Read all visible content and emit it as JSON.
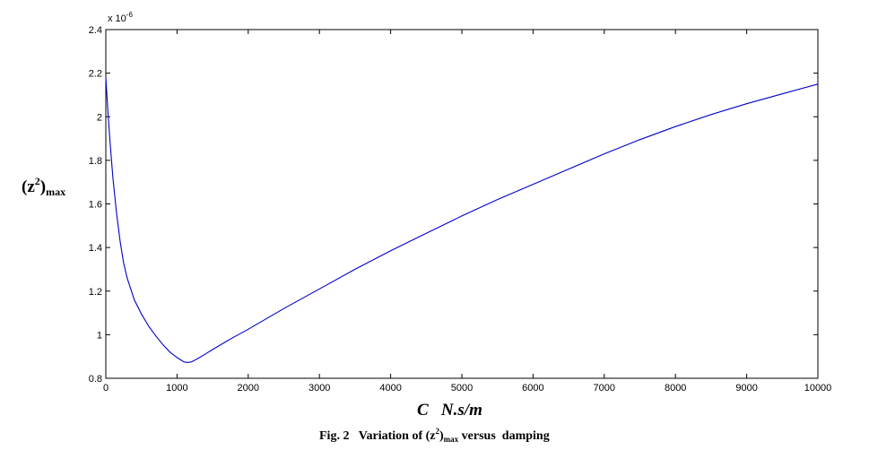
{
  "chart_data": {
    "type": "line",
    "xlabel": "C   N.s/m",
    "ylabel": {
      "base": "(z",
      "sup": "2",
      "tail": ")",
      "sub": "max"
    },
    "exponent": {
      "base": "x 10",
      "sup": "-6"
    },
    "caption": {
      "pre": "Fig. 2   Variation of (z",
      "sup": "2",
      "mid": ")",
      "sub": "max",
      "post": " versus  damping"
    },
    "xlim": [
      0,
      10000
    ],
    "ylim": [
      0.8,
      2.4
    ],
    "xticks": [
      0,
      1000,
      2000,
      3000,
      4000,
      5000,
      6000,
      7000,
      8000,
      9000,
      10000
    ],
    "yticks": [
      0.8,
      1,
      1.2,
      1.4,
      1.6,
      1.8,
      2,
      2.2,
      2.4
    ],
    "ytick_labels": [
      "0.8",
      "1",
      "1.2",
      "1.4",
      "1.6",
      "1.8",
      "2",
      "2.2",
      "2.4"
    ],
    "line_color": "#0000cc",
    "grid": false,
    "series": [
      {
        "x": [
          0,
          30,
          60,
          100,
          150,
          200,
          250,
          300,
          400,
          500,
          600,
          700,
          800,
          900,
          1000,
          1100,
          1150,
          1200,
          1300,
          1400,
          1500,
          1750,
          2000,
          2500,
          3000,
          3500,
          4000,
          4500,
          5000,
          5500,
          6000,
          6500,
          7000,
          7500,
          8000,
          8500,
          9000,
          9500,
          10000
        ],
        "y": [
          2.18,
          2.02,
          1.88,
          1.72,
          1.56,
          1.43,
          1.33,
          1.26,
          1.16,
          1.095,
          1.04,
          0.995,
          0.955,
          0.92,
          0.895,
          0.875,
          0.873,
          0.875,
          0.892,
          0.912,
          0.932,
          0.98,
          1.025,
          1.12,
          1.21,
          1.3,
          1.385,
          1.465,
          1.545,
          1.62,
          1.69,
          1.76,
          1.83,
          1.895,
          1.955,
          2.01,
          2.06,
          2.105,
          2.15
        ]
      }
    ]
  }
}
